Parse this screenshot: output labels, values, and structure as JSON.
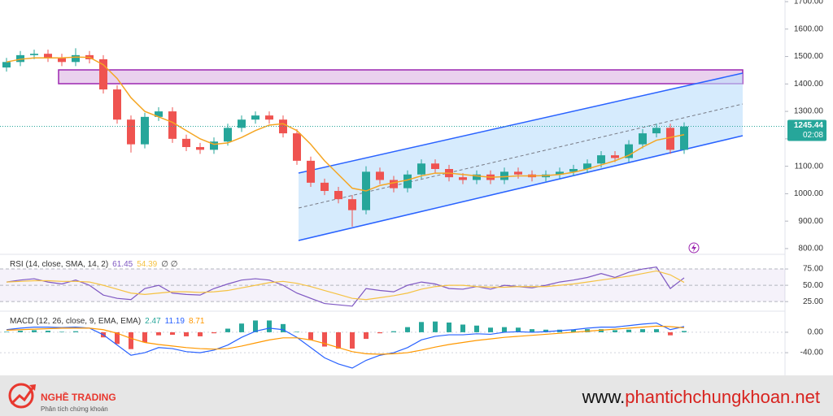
{
  "chart_data": [
    {
      "type": "candlestick",
      "open": [
        1460,
        1480,
        1505,
        1510,
        1495,
        1480,
        1505,
        1490,
        1380,
        1270,
        1180,
        1280,
        1300,
        1200,
        1170,
        1160,
        1190,
        1240,
        1270,
        1285,
        1270,
        1220,
        1120,
        1040,
        1010,
        980,
        940,
        1080,
        1050,
        1020,
        1070,
        1110,
        1090,
        1060,
        1050,
        1070,
        1050,
        1080,
        1070,
        1060,
        1070,
        1080,
        1090,
        1110,
        1140,
        1130,
        1180,
        1220,
        1240,
        1160
      ],
      "high": [
        1495,
        1520,
        1525,
        1525,
        1510,
        1530,
        1520,
        1505,
        1395,
        1285,
        1295,
        1315,
        1315,
        1215,
        1185,
        1205,
        1255,
        1285,
        1300,
        1300,
        1285,
        1235,
        1135,
        1055,
        1025,
        995,
        1100,
        1095,
        1065,
        1085,
        1125,
        1125,
        1105,
        1075,
        1085,
        1085,
        1095,
        1095,
        1085,
        1085,
        1095,
        1105,
        1125,
        1155,
        1155,
        1195,
        1235,
        1255,
        1255,
        1260
      ],
      "low": [
        1445,
        1465,
        1490,
        1480,
        1465,
        1465,
        1475,
        1365,
        1255,
        1150,
        1165,
        1265,
        1185,
        1155,
        1145,
        1145,
        1175,
        1225,
        1255,
        1255,
        1205,
        1105,
        1025,
        995,
        965,
        880,
        925,
        1035,
        1005,
        1005,
        1055,
        1075,
        1045,
        1035,
        1035,
        1035,
        1035,
        1055,
        1045,
        1045,
        1055,
        1065,
        1075,
        1095,
        1115,
        1115,
        1165,
        1205,
        1145,
        1145
      ],
      "close": [
        1480,
        1505,
        1510,
        1495,
        1480,
        1505,
        1490,
        1380,
        1270,
        1180,
        1280,
        1300,
        1200,
        1170,
        1160,
        1190,
        1240,
        1270,
        1285,
        1270,
        1220,
        1120,
        1040,
        1010,
        980,
        940,
        1080,
        1050,
        1020,
        1070,
        1110,
        1090,
        1060,
        1050,
        1070,
        1050,
        1080,
        1070,
        1060,
        1070,
        1080,
        1090,
        1110,
        1140,
        1130,
        1180,
        1220,
        1240,
        1160,
        1245
      ],
      "up_color": "#26a69a",
      "down_color": "#ef5350",
      "moving_average": {
        "color": "#f5a623",
        "values": [
          1480,
          1490,
          1495,
          1495,
          1495,
          1498,
          1497,
          1470,
          1420,
          1350,
          1300,
          1280,
          1260,
          1230,
          1200,
          1180,
          1185,
          1205,
          1230,
          1250,
          1255,
          1230,
          1180,
          1120,
          1070,
          1020,
          1010,
          1030,
          1040,
          1050,
          1065,
          1075,
          1075,
          1070,
          1065,
          1060,
          1062,
          1065,
          1065,
          1066,
          1070,
          1078,
          1090,
          1105,
          1120,
          1140,
          1170,
          1195,
          1205,
          1215
        ]
      },
      "ylim": [
        782,
        1706
      ],
      "yticks": [
        {
          "value": 1700,
          "label": "1700.00"
        },
        {
          "value": 1600,
          "label": "1600.00"
        },
        {
          "value": 1500,
          "label": "1500.00"
        },
        {
          "value": 1400,
          "label": "1400.00"
        },
        {
          "value": 1300,
          "label": "1300.00"
        },
        {
          "value": 1200,
          "label": "1200.00"
        },
        {
          "value": 1100,
          "label": "1100.00"
        },
        {
          "value": 1000,
          "label": "1000.00"
        },
        {
          "value": 900,
          "label": "900.00"
        },
        {
          "value": 800,
          "label": "800.00"
        }
      ],
      "last_price": 1245.44,
      "countdown": "02:08"
    },
    {
      "type": "line",
      "title": "RSI (14, close, SMA, 14, 2)",
      "extras": "∅ ∅",
      "series": [
        {
          "color": "#7e57c2",
          "values": [
            55,
            58,
            60,
            55,
            52,
            58,
            50,
            35,
            30,
            28,
            45,
            50,
            38,
            36,
            35,
            45,
            52,
            58,
            60,
            58,
            50,
            38,
            30,
            22,
            20,
            18,
            45,
            42,
            40,
            50,
            55,
            52,
            45,
            44,
            48,
            44,
            50,
            48,
            46,
            50,
            55,
            58,
            62,
            68,
            62,
            70,
            75,
            78,
            45,
            61.45
          ]
        },
        {
          "color": "#f5c242",
          "values": [
            55,
            56,
            57,
            57,
            56,
            56,
            55,
            50,
            44,
            38,
            36,
            38,
            40,
            40,
            39,
            40,
            42,
            46,
            50,
            54,
            56,
            53,
            48,
            42,
            36,
            30,
            28,
            31,
            34,
            38,
            44,
            48,
            50,
            50,
            48,
            47,
            47,
            48,
            48,
            48,
            50,
            52,
            55,
            58,
            61,
            64,
            68,
            72,
            66,
            54.39
          ]
        }
      ],
      "ylim": [
        14,
        95
      ],
      "yticks": [
        {
          "value": 75,
          "label": "75.00"
        },
        {
          "value": 50,
          "label": "50.00"
        },
        {
          "value": 25,
          "label": "25.00"
        }
      ]
    },
    {
      "type": "line",
      "title": "MACD (12, 26, close, 9, EMA, EMA)",
      "series": [
        {
          "style": "histogram",
          "color": "#26a69a",
          "down_color": "#ef5350",
          "values": [
            1,
            3,
            4,
            3,
            1,
            2,
            0,
            -10,
            -23,
            -33,
            -20,
            -6,
            -5,
            -8,
            -8,
            -2,
            7,
            17,
            23,
            23,
            16,
            1,
            -15,
            -28,
            -32,
            -32,
            -13,
            -2,
            2,
            10,
            20,
            21,
            19,
            15,
            13,
            9,
            10,
            9,
            6,
            5,
            5,
            5,
            6,
            6,
            4,
            5,
            6,
            6,
            -6,
            2.47
          ]
        },
        {
          "style": "line",
          "color": "#2962ff",
          "values": [
            5,
            8,
            10,
            10,
            9,
            10,
            8,
            -5,
            -25,
            -45,
            -40,
            -30,
            -32,
            -38,
            -40,
            -35,
            -25,
            -10,
            2,
            8,
            5,
            -10,
            -30,
            -50,
            -62,
            -70,
            -55,
            -45,
            -40,
            -30,
            -15,
            -8,
            -5,
            -5,
            -3,
            -4,
            0,
            1,
            0,
            1,
            3,
            5,
            8,
            10,
            10,
            13,
            16,
            18,
            5,
            11.19
          ]
        },
        {
          "style": "line",
          "color": "#ff9800",
          "values": [
            4,
            5,
            6,
            7,
            8,
            8,
            8,
            5,
            -2,
            -12,
            -20,
            -24,
            -27,
            -30,
            -32,
            -33,
            -32,
            -27,
            -21,
            -15,
            -11,
            -11,
            -15,
            -22,
            -30,
            -38,
            -42,
            -43,
            -42,
            -40,
            -35,
            -29,
            -24,
            -20,
            -16,
            -13,
            -10,
            -8,
            -6,
            -4,
            -2,
            0,
            2,
            4,
            6,
            8,
            10,
            12,
            11,
            8.71
          ]
        }
      ],
      "ylim": [
        -78,
        38
      ],
      "yticks": [
        {
          "value": 0,
          "label": "0.00"
        },
        {
          "value": -40,
          "label": "-40.00"
        }
      ]
    }
  ],
  "footer": {
    "brand": "NGHỀ TRADING",
    "tagline": "Phân tích chứng khoán",
    "url_prefix": "www.",
    "url_domain": "phantichchungkhoan.net"
  }
}
